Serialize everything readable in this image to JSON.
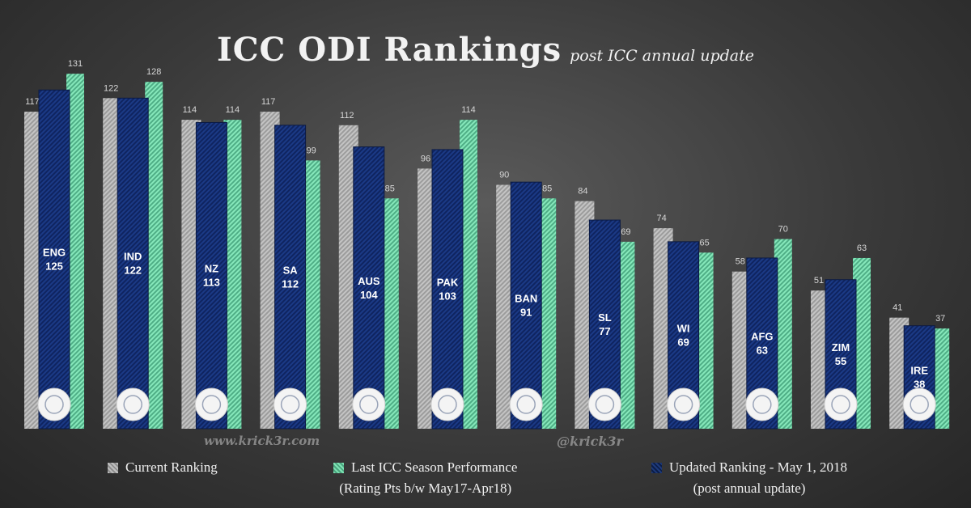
{
  "title": {
    "main": "ICC ODI Rankings",
    "sub": "post ICC annual update"
  },
  "watermarks": {
    "site": "www.krick3r.com",
    "handle": "@krick3r"
  },
  "legend": {
    "current": "Current Ranking",
    "last_season": "Last ICC Season Performance",
    "last_season_note": "(Rating Pts b/w May17-Apr18)",
    "updated": "Updated Ranking - May 1, 2018",
    "updated_note": "(post annual update)"
  },
  "colors": {
    "current": "#a9a9a9",
    "updated": "#13296b",
    "last_season": "#67d4a0"
  },
  "chart_data": {
    "type": "bar",
    "title": "ICC ODI Rankings",
    "subtitle": "post ICC annual update",
    "categories": [
      "ENG",
      "IND",
      "NZ",
      "SA",
      "AUS",
      "PAK",
      "BAN",
      "SL",
      "WI",
      "AFG",
      "ZIM",
      "IRE"
    ],
    "series": [
      {
        "name": "Current Ranking",
        "values": [
          117,
          122,
          114,
          117,
          112,
          96,
          90,
          84,
          74,
          58,
          51,
          41
        ]
      },
      {
        "name": "Updated Ranking - May 1, 2018",
        "values": [
          125,
          122,
          113,
          112,
          104,
          103,
          91,
          77,
          69,
          63,
          55,
          38
        ]
      },
      {
        "name": "Last ICC Season Performance (Rating Pts b/w May17-Apr18)",
        "values": [
          131,
          128,
          114,
          99,
          85,
          114,
          85,
          69,
          65,
          70,
          63,
          37
        ]
      }
    ],
    "ylim": [
      0,
      140
    ],
    "xlabel": "",
    "ylabel": "",
    "grid": false,
    "legend": "bottom"
  }
}
